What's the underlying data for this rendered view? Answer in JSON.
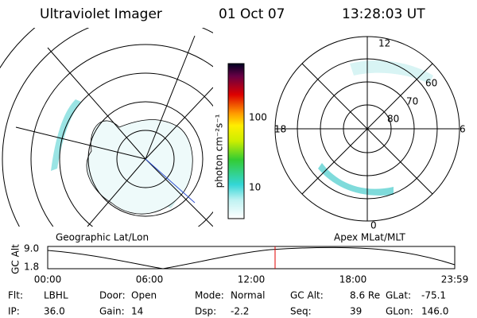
{
  "header": {
    "title": "Ultraviolet Imager",
    "date": "01 Oct 07",
    "time": "13:28:03 UT"
  },
  "colorbar": {
    "label": "photon cm⁻²s⁻¹",
    "ticks": [
      "100",
      "10"
    ]
  },
  "polar": {
    "hours": [
      "12",
      "18",
      "6",
      "0"
    ],
    "latitudes": [
      "60",
      "70",
      "80"
    ]
  },
  "maps": {
    "left_caption": "Geographic Lat/Lon",
    "right_caption": "Apex MLat/MLT"
  },
  "altitude": {
    "label": "GC Alt",
    "yticks": [
      "9.0",
      "1.8"
    ],
    "xticks": [
      "00:00",
      "06:00",
      "12:00",
      "18:00",
      "23:59"
    ]
  },
  "footer": {
    "rows": [
      [
        [
          "Flt:",
          "LBHL"
        ],
        [
          "Door:",
          "Open"
        ],
        [
          "Mode:",
          "Normal"
        ],
        [
          "GC Alt:",
          "8.6 Re"
        ],
        [
          "GLat:",
          "-75.1"
        ]
      ],
      [
        [
          "IP:",
          "36.0"
        ],
        [
          "Gain:",
          "14"
        ],
        [
          "Dsp:",
          "-2.2"
        ],
        [
          "Seq:",
          "39"
        ],
        [
          "GLon:",
          "146.0"
        ]
      ]
    ]
  }
}
